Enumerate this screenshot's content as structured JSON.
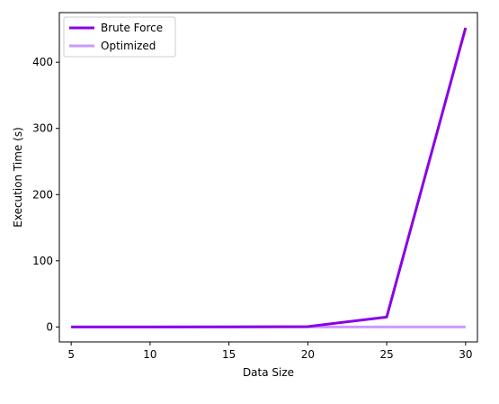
{
  "chart_data": {
    "type": "line",
    "xlabel": "Data Size",
    "ylabel": "Execution Time (s)",
    "x": [
      5,
      10,
      15,
      20,
      25,
      30
    ],
    "xlim": [
      4.25,
      30.75
    ],
    "ylim": [
      -22.6,
      475
    ],
    "xticks": [
      5,
      10,
      15,
      20,
      25,
      30
    ],
    "yticks": [
      0,
      100,
      200,
      300,
      400
    ],
    "grid": false,
    "legend_position": "top-left",
    "series": [
      {
        "name": "Brute Force",
        "color": "#8a00e6",
        "values": [
          0.0003,
          0.008,
          0.25,
          0.6,
          15,
          452
        ]
      },
      {
        "name": "Optimized",
        "color": "#cc99ff",
        "values": [
          0.0001,
          0.0002,
          0.0003,
          0.0004,
          0.0005,
          0.0006
        ]
      }
    ]
  }
}
